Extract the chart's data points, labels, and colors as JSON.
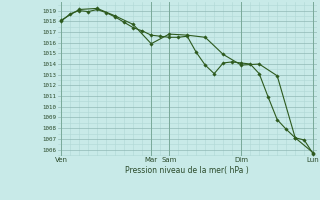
{
  "background_color": "#c8eae8",
  "grid_color_minor": "#b0d8d5",
  "grid_color_major": "#90b8b5",
  "line_color": "#2d5a1e",
  "xlabel": "Pression niveau de la mer( hPa )",
  "ylabel_values": [
    1006,
    1007,
    1008,
    1009,
    1010,
    1011,
    1012,
    1013,
    1014,
    1015,
    1016,
    1017,
    1018,
    1019
  ],
  "ylim": [
    1005.4,
    1019.8
  ],
  "xtick_labels": [
    "Ven",
    "Mar",
    "Sam",
    "Dim",
    "Lun"
  ],
  "xtick_positions": [
    0,
    5,
    6,
    10,
    14
  ],
  "vline_positions": [
    0,
    5,
    6,
    10,
    14
  ],
  "line1_x": [
    0,
    0.5,
    1,
    1.5,
    2,
    2.5,
    3,
    3.5,
    4,
    4.5,
    5,
    5.5,
    6,
    6.5,
    7,
    7.5,
    8,
    8.5,
    9,
    9.5,
    10,
    10.5,
    11,
    11.5,
    12,
    12.5,
    13,
    13.5,
    14
  ],
  "line1_y": [
    1018.0,
    1018.7,
    1019.0,
    1018.9,
    1019.1,
    1018.8,
    1018.4,
    1017.9,
    1017.4,
    1017.1,
    1016.7,
    1016.6,
    1016.5,
    1016.5,
    1016.6,
    1015.1,
    1013.9,
    1013.1,
    1014.1,
    1014.2,
    1014.1,
    1014.0,
    1013.1,
    1010.9,
    1008.8,
    1007.9,
    1007.1,
    1006.9,
    1005.6
  ],
  "line2_x": [
    0,
    1,
    2,
    3,
    4,
    5,
    6,
    7,
    8,
    9,
    10,
    11,
    12,
    13,
    14
  ],
  "line2_y": [
    1018.1,
    1019.1,
    1019.2,
    1018.5,
    1017.7,
    1015.9,
    1016.8,
    1016.7,
    1016.5,
    1014.9,
    1013.9,
    1014.0,
    1012.9,
    1007.1,
    1005.7
  ]
}
